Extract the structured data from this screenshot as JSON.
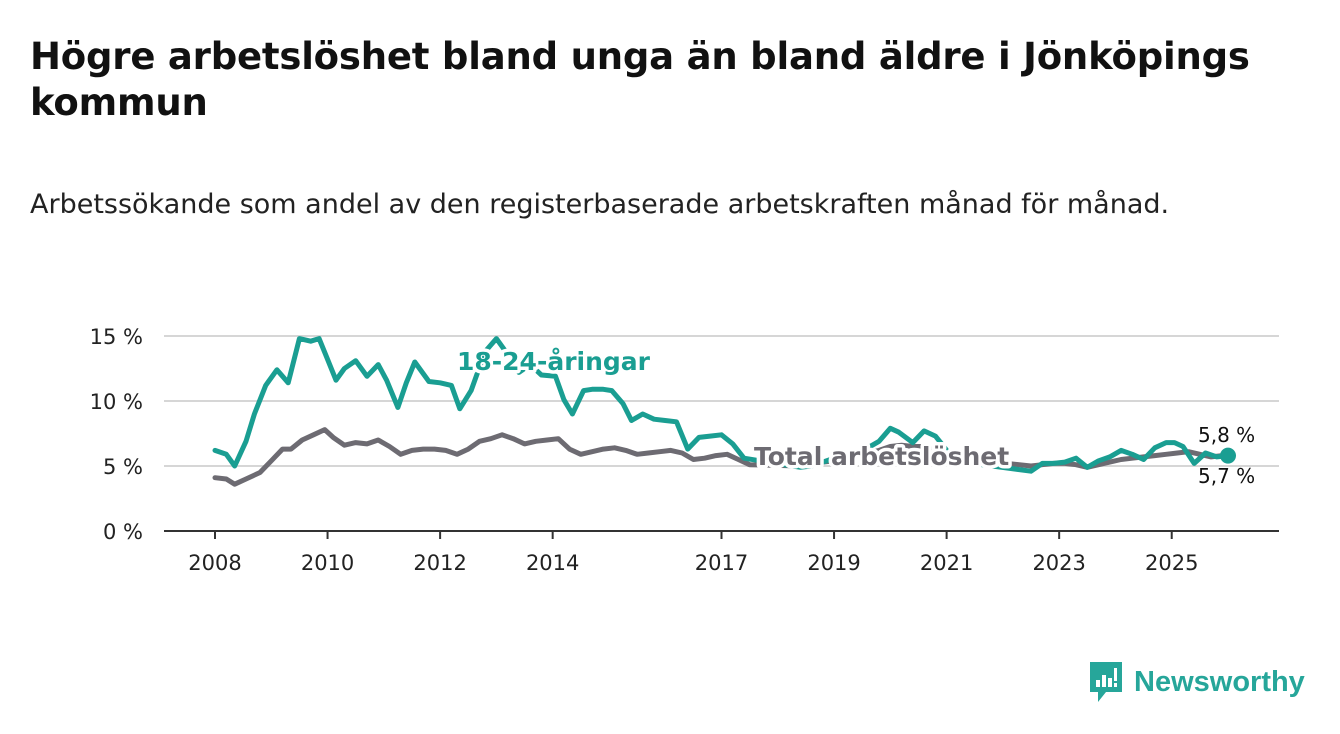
{
  "title": "Högre arbetslöshet bland unga än bland äldre i Jönköpings kommun",
  "subtitle": "Arbetssökande som andel av den registerbaserade arbetskraften månad för månad.",
  "brand": {
    "name": "Newsworthy",
    "icon": "newsworthy-bar-chart-icon",
    "color": "#26a69a"
  },
  "chart_data": {
    "type": "line",
    "title": "Högre arbetslöshet bland unga än bland äldre i Jönköpings kommun",
    "xlabel": "",
    "ylabel": "",
    "ylim": [
      0,
      15
    ],
    "xlim": [
      2008,
      2026.2
    ],
    "y_ticks": [
      0,
      5,
      10,
      15
    ],
    "y_tick_labels": [
      "0 %",
      "5 %",
      "10 %",
      "15 %"
    ],
    "x_ticks": [
      2008,
      2010,
      2012,
      2014,
      2017,
      2019,
      2021,
      2023,
      2025
    ],
    "x_tick_labels": [
      "2008",
      "2010",
      "2012",
      "2014",
      "2017",
      "2019",
      "2021",
      "2023",
      "2025"
    ],
    "grid": "horizontal",
    "series": [
      {
        "name": "18-24-åringar",
        "color": "#1a9e92",
        "label": "18-24-åringar",
        "end_label": "5,8 %",
        "x": [
          2008.0,
          2008.2,
          2008.35,
          2008.55,
          2008.7,
          2008.9,
          2009.1,
          2009.3,
          2009.5,
          2009.7,
          2009.85,
          2010.0,
          2010.15,
          2010.3,
          2010.5,
          2010.7,
          2010.9,
          2011.05,
          2011.25,
          2011.4,
          2011.55,
          2011.8,
          2012.0,
          2012.2,
          2012.35,
          2012.55,
          2012.8,
          2013.0,
          2013.2,
          2013.4,
          2013.6,
          2013.8,
          2014.05,
          2014.2,
          2014.35,
          2014.55,
          2014.7,
          2014.9,
          2015.05,
          2015.25,
          2015.4,
          2015.6,
          2015.8,
          2016.0,
          2016.2,
          2016.4,
          2016.6,
          2016.8,
          2017.0,
          2017.2,
          2017.4,
          2018.4,
          2018.6,
          2018.8,
          2019.0,
          2019.2,
          2019.4,
          2019.6,
          2019.8,
          2020.0,
          2020.15,
          2020.4,
          2020.6,
          2020.8,
          2020.95,
          2021.1,
          2021.3,
          2022.5,
          2022.7,
          2022.9,
          2023.1,
          2023.3,
          2023.5,
          2023.7,
          2023.9,
          2024.1,
          2024.3,
          2024.5,
          2024.7,
          2024.9,
          2025.05,
          2025.2,
          2025.4,
          2025.6,
          2025.8,
          2026.0
        ],
        "values": [
          6.2,
          5.9,
          5.0,
          6.9,
          9.0,
          11.2,
          12.4,
          11.4,
          14.8,
          14.6,
          14.8,
          13.2,
          11.6,
          12.5,
          13.1,
          11.9,
          12.8,
          11.6,
          9.5,
          11.4,
          13.0,
          11.5,
          11.4,
          11.2,
          9.4,
          10.8,
          13.8,
          14.8,
          13.6,
          12.2,
          12.8,
          12.0,
          11.9,
          10.1,
          9.0,
          10.8,
          10.9,
          10.9,
          10.8,
          9.8,
          8.5,
          9.0,
          8.6,
          8.5,
          8.4,
          6.3,
          7.2,
          7.3,
          7.4,
          6.7,
          5.6,
          4.9,
          5.0,
          5.3,
          5.6,
          5.8,
          6.0,
          6.4,
          6.9,
          7.9,
          7.6,
          6.8,
          7.7,
          7.3,
          6.5,
          5.6,
          5.3,
          4.6,
          5.2,
          5.2,
          5.3,
          5.6,
          4.9,
          5.4,
          5.7,
          6.2,
          5.9,
          5.5,
          6.4,
          6.8,
          6.8,
          6.5,
          5.2,
          6.0,
          5.7,
          5.8
        ]
      },
      {
        "name": "Total arbetslöshet",
        "color": "#6d6b72",
        "label": "Total arbetslöshet",
        "end_label": "5,7 %",
        "x": [
          2008.0,
          2008.2,
          2008.35,
          2008.55,
          2008.8,
          2009.0,
          2009.2,
          2009.35,
          2009.55,
          2009.75,
          2009.95,
          2010.1,
          2010.3,
          2010.5,
          2010.7,
          2010.9,
          2011.1,
          2011.3,
          2011.5,
          2011.7,
          2011.9,
          2012.1,
          2012.3,
          2012.5,
          2012.7,
          2012.9,
          2013.1,
          2013.3,
          2013.5,
          2013.7,
          2013.9,
          2014.1,
          2014.3,
          2014.5,
          2014.7,
          2014.9,
          2015.1,
          2015.3,
          2015.5,
          2015.7,
          2015.9,
          2016.1,
          2016.3,
          2016.5,
          2016.7,
          2016.9,
          2017.1,
          2017.3,
          2017.5,
          2018.4,
          2018.6,
          2018.8,
          2019.0,
          2019.2,
          2019.4,
          2019.6,
          2019.8,
          2020.0,
          2020.2,
          2020.4,
          2020.6,
          2020.8,
          2021.0,
          2021.2,
          2022.5,
          2022.7,
          2022.9,
          2023.1,
          2023.3,
          2023.5,
          2023.7,
          2023.9,
          2024.1,
          2024.3,
          2024.5,
          2024.7,
          2024.9,
          2025.1,
          2025.3,
          2025.5,
          2025.7,
          2025.9,
          2026.0
        ],
        "values": [
          4.1,
          4.0,
          3.6,
          4.0,
          4.5,
          5.4,
          6.3,
          6.3,
          7.0,
          7.4,
          7.8,
          7.2,
          6.6,
          6.8,
          6.7,
          7.0,
          6.5,
          5.9,
          6.2,
          6.3,
          6.3,
          6.2,
          5.9,
          6.3,
          6.9,
          7.1,
          7.4,
          7.1,
          6.7,
          6.9,
          7.0,
          7.1,
          6.3,
          5.9,
          6.1,
          6.3,
          6.4,
          6.2,
          5.9,
          6.0,
          6.1,
          6.2,
          6.0,
          5.5,
          5.6,
          5.8,
          5.9,
          5.5,
          5.1,
          5.0,
          5.1,
          5.3,
          5.4,
          5.6,
          5.8,
          6.0,
          6.2,
          6.5,
          6.6,
          6.5,
          6.5,
          6.2,
          6.0,
          5.6,
          5.0,
          5.1,
          5.2,
          5.2,
          5.1,
          4.9,
          5.1,
          5.3,
          5.5,
          5.6,
          5.7,
          5.8,
          5.9,
          6.0,
          6.1,
          5.9,
          5.7,
          5.8,
          5.7
        ]
      }
    ],
    "annotations": [
      {
        "text": "18-24-åringar",
        "series": "18-24-åringar"
      },
      {
        "text": "Total arbetslöshet",
        "series": "Total arbetslöshet"
      },
      {
        "text": "5,8 %",
        "series": "18-24-åringar"
      },
      {
        "text": "5,7 %",
        "series": "Total arbetslöshet"
      }
    ]
  }
}
